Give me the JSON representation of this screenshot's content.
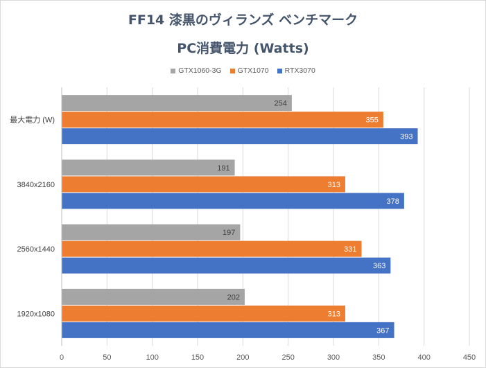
{
  "chart_data": {
    "type": "bar",
    "orientation": "horizontal",
    "title": "FF14 漆黒のヴィランズ ベンチマーク",
    "subtitle": "PC消費電力 (Watts)",
    "categories": [
      "最大電力 (W)",
      "3840x2160",
      "2560x1440",
      "1920x1080"
    ],
    "series": [
      {
        "name": "GTX1060-3G",
        "color": "#a5a5a5",
        "values": [
          254,
          191,
          197,
          202
        ]
      },
      {
        "name": "GTX1070",
        "color": "#ed7d31",
        "values": [
          355,
          313,
          331,
          313
        ]
      },
      {
        "name": "RTX3070",
        "color": "#4472c4",
        "values": [
          393,
          378,
          363,
          367
        ]
      }
    ],
    "xlim": [
      0,
      450
    ],
    "xticks": [
      "0",
      "50",
      "100",
      "150",
      "200",
      "250",
      "300",
      "350",
      "400",
      "450"
    ],
    "grid": true,
    "legend_position": "top"
  }
}
